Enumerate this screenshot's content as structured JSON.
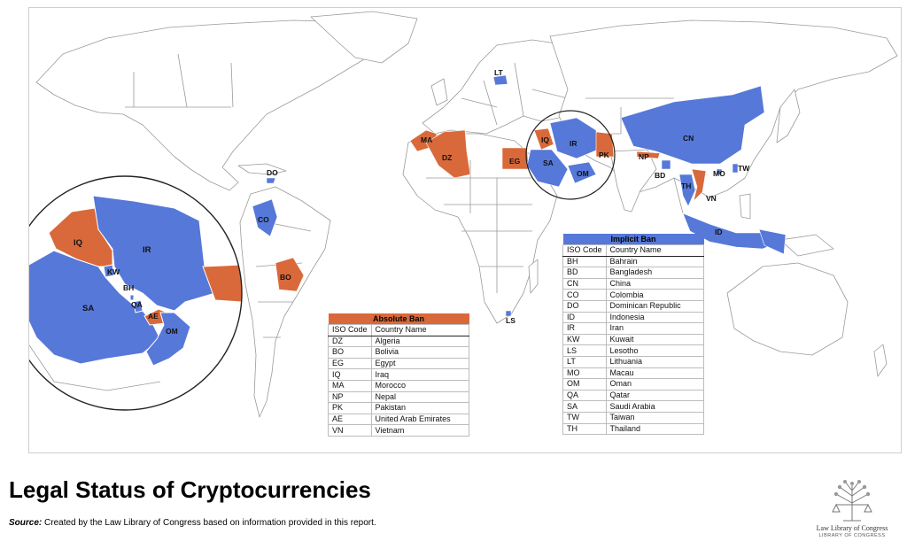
{
  "title": "Legal Status of Cryptocurrencies",
  "source_label": "Source:",
  "source_text": " Created by the Law Library of Congress based on information provided in this report.",
  "logo": {
    "line1": "Law Library of Congress",
    "line2": "LIBRARY OF CONGRESS"
  },
  "colors": {
    "absolute_ban": "#d9693a",
    "implicit_ban": "#5678d8",
    "border": "#9a9a9a"
  },
  "absolute_ban": {
    "title": "Absolute Ban",
    "col_code": "ISO Code",
    "col_name": "Country Name",
    "rows": [
      [
        "DZ",
        "Algeria"
      ],
      [
        "BO",
        "Bolivia"
      ],
      [
        "EG",
        "Egypt"
      ],
      [
        "IQ",
        "Iraq"
      ],
      [
        "MA",
        "Morocco"
      ],
      [
        "NP",
        "Nepal"
      ],
      [
        "PK",
        "Pakistan"
      ],
      [
        "AE",
        "United Arab Emirates"
      ],
      [
        "VN",
        "Vietnam"
      ]
    ]
  },
  "implicit_ban": {
    "title": "Implicit Ban",
    "col_code": "ISO Code",
    "col_name": "Country Name",
    "rows": [
      [
        "BH",
        "Bahrain"
      ],
      [
        "BD",
        "Bangladesh"
      ],
      [
        "CN",
        "China"
      ],
      [
        "CO",
        "Colombia"
      ],
      [
        "DO",
        "Dominican Republic"
      ],
      [
        "ID",
        "Indonesia"
      ],
      [
        "IR",
        "Iran"
      ],
      [
        "KW",
        "Kuwait"
      ],
      [
        "LS",
        "Lesotho"
      ],
      [
        "LT",
        "Lithuania"
      ],
      [
        "MO",
        "Macau"
      ],
      [
        "OM",
        "Oman"
      ],
      [
        "QA",
        "Qatar"
      ],
      [
        "SA",
        "Saudi Arabia"
      ],
      [
        "TW",
        "Taiwan"
      ],
      [
        "TH",
        "Thailand"
      ]
    ]
  },
  "map_labels": {
    "LT": "LT",
    "MA": "MA",
    "DZ": "DZ",
    "EG": "EG",
    "IQ": "IQ",
    "IR": "IR",
    "SA": "SA",
    "OM": "OM",
    "PK": "PK",
    "NP": "NP",
    "BD": "BD",
    "CN": "CN",
    "MO": "MO",
    "TW": "TW",
    "TH": "TH",
    "VN": "VN",
    "ID": "ID",
    "DO": "DO",
    "CO": "CO",
    "BO": "BO",
    "LS": "LS"
  },
  "inset_labels": {
    "IQ": "IQ",
    "IR": "IR",
    "KW": "KW",
    "SA": "SA",
    "BH": "BH",
    "QA": "QA",
    "AE": "AE",
    "OM": "OM"
  }
}
